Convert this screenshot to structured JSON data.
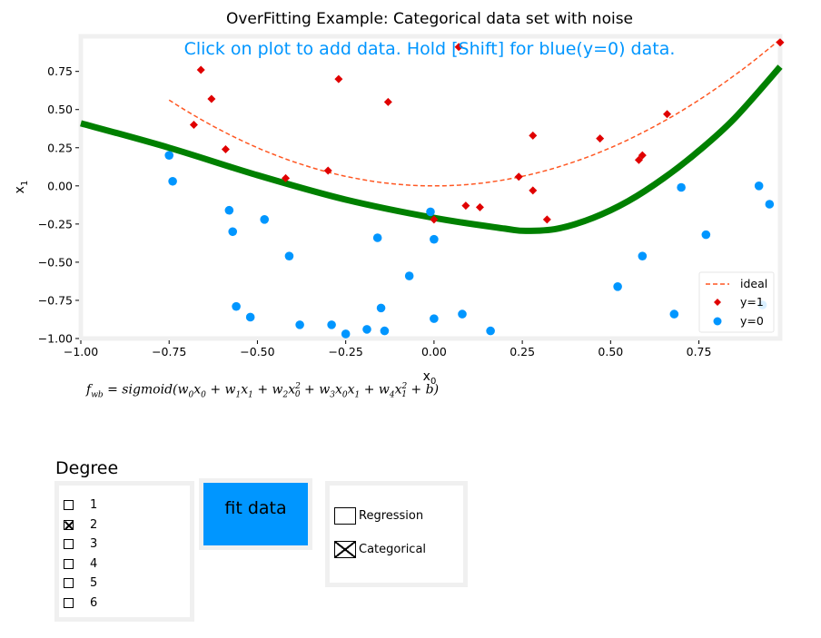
{
  "chart_data": {
    "type": "scatter",
    "title": "OverFitting Example: Categorical data set with noise",
    "annotation": "Click on plot to add data. Hold [Shift] for blue(y=0) data.",
    "xlabel": "x0",
    "ylabel": "x1",
    "xlim": [
      -1.0,
      0.98
    ],
    "ylim": [
      -1.0,
      0.98
    ],
    "xticks": [
      -1.0,
      -0.75,
      -0.5,
      -0.25,
      0.0,
      0.25,
      0.5,
      0.75
    ],
    "xtick_labels": [
      "−1.00",
      "−0.75",
      "−0.50",
      "−0.25",
      "0.00",
      "0.25",
      "0.50",
      "0.75"
    ],
    "yticks": [
      -1.0,
      -0.75,
      -0.5,
      -0.25,
      0.0,
      0.25,
      0.5,
      0.75
    ],
    "ytick_labels": [
      "−1.00",
      "−0.75",
      "−0.50",
      "−0.25",
      "0.00",
      "0.25",
      "0.50",
      "0.75"
    ],
    "legend": [
      "ideal",
      "y=1",
      "y=0"
    ],
    "legend_position": "lower-right",
    "colors": {
      "ideal": "#FF5722",
      "positive": "#E00000",
      "negative": "#0096FF",
      "fit": "#008000",
      "annotation": "#0096FF"
    },
    "ideal_curve": {
      "x_range": [
        -0.75,
        0.98
      ],
      "equation": "x1 = x0^2"
    },
    "positive_points": [
      [
        -0.66,
        0.76
      ],
      [
        -0.63,
        0.57
      ],
      [
        -0.68,
        0.4
      ],
      [
        -0.59,
        0.24
      ],
      [
        -0.27,
        0.7
      ],
      [
        -0.13,
        0.55
      ],
      [
        -0.42,
        0.05
      ],
      [
        -0.3,
        0.1
      ],
      [
        0.07,
        0.91
      ],
      [
        0.0,
        -0.22
      ],
      [
        0.09,
        -0.13
      ],
      [
        0.13,
        -0.14
      ],
      [
        0.24,
        0.06
      ],
      [
        0.28,
        -0.03
      ],
      [
        0.28,
        0.33
      ],
      [
        0.32,
        -0.22
      ],
      [
        0.47,
        0.31
      ],
      [
        0.58,
        0.17
      ],
      [
        0.59,
        0.2
      ],
      [
        0.66,
        0.47
      ],
      [
        0.98,
        0.94
      ]
    ],
    "negative_points": [
      [
        -0.75,
        0.2
      ],
      [
        -0.74,
        0.03
      ],
      [
        -0.58,
        -0.16
      ],
      [
        -0.57,
        -0.3
      ],
      [
        -0.48,
        -0.22
      ],
      [
        -0.41,
        -0.46
      ],
      [
        -0.56,
        -0.79
      ],
      [
        -0.52,
        -0.86
      ],
      [
        -0.38,
        -0.91
      ],
      [
        -0.29,
        -0.91
      ],
      [
        -0.25,
        -0.97
      ],
      [
        -0.19,
        -0.94
      ],
      [
        -0.14,
        -0.95
      ],
      [
        -0.16,
        -0.34
      ],
      [
        -0.15,
        -0.8
      ],
      [
        -0.07,
        -0.59
      ],
      [
        -0.01,
        -0.17
      ],
      [
        0.0,
        -0.35
      ],
      [
        0.0,
        -0.87
      ],
      [
        0.08,
        -0.84
      ],
      [
        0.16,
        -0.95
      ],
      [
        0.52,
        -0.66
      ],
      [
        0.59,
        -0.46
      ],
      [
        0.68,
        -0.84
      ],
      [
        0.7,
        -0.01
      ],
      [
        0.77,
        -0.32
      ],
      [
        0.92,
        0.0
      ],
      [
        0.93,
        -0.78
      ],
      [
        0.95,
        -0.12
      ]
    ],
    "fit_curve": [
      [
        -1.0,
        0.41
      ],
      [
        -0.75,
        0.25
      ],
      [
        -0.5,
        0.07
      ],
      [
        -0.25,
        -0.09
      ],
      [
        0.0,
        -0.21
      ],
      [
        0.2,
        -0.28
      ],
      [
        0.26,
        -0.295
      ],
      [
        0.35,
        -0.28
      ],
      [
        0.45,
        -0.21
      ],
      [
        0.55,
        -0.1
      ],
      [
        0.65,
        0.05
      ],
      [
        0.75,
        0.23
      ],
      [
        0.85,
        0.44
      ],
      [
        0.98,
        0.78
      ]
    ]
  },
  "formula": {
    "lhs": "f",
    "lhs_sub": "wb",
    "text": " = sigmoid(w",
    "w0_sub": "0",
    "x0": "x",
    "x0_sub": "0",
    "plus1": " + w",
    "w1_sub": "1",
    "x1": "x",
    "x1_sub": "1",
    "plus2": " + w",
    "w2_sub": "2",
    "x2": "x",
    "x2_sub": "0",
    "x2_sup": "2",
    "plus3": " + w",
    "w3_sub": "3",
    "x3a": "x",
    "x3a_sub": "0",
    "x3b": "x",
    "x3b_sub": "1",
    "plus4": " + w",
    "w4_sub": "4",
    "x4": "x",
    "x4_sub": "1",
    "x4_sup": "2",
    "tail": " + b)"
  },
  "degree": {
    "title": "Degree",
    "options": [
      {
        "label": "1",
        "checked": false
      },
      {
        "label": "2",
        "checked": true
      },
      {
        "label": "3",
        "checked": false
      },
      {
        "label": "4",
        "checked": false
      },
      {
        "label": "5",
        "checked": false
      },
      {
        "label": "6",
        "checked": false
      }
    ]
  },
  "fit_button": {
    "label": "fit data",
    "color": "#0096FF"
  },
  "model_type": {
    "options": [
      {
        "label": "Regression",
        "checked": false
      },
      {
        "label": "Categorical",
        "checked": true
      }
    ]
  }
}
